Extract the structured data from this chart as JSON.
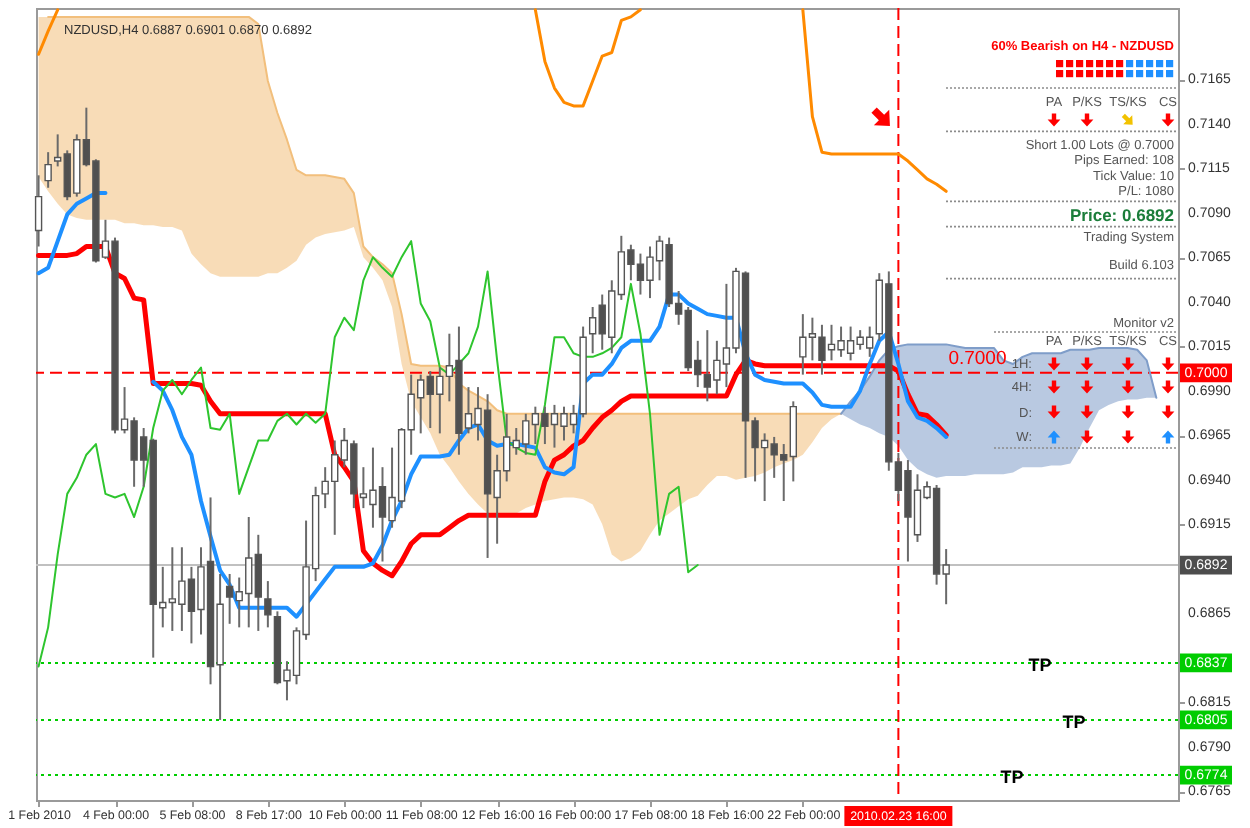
{
  "chart_data": {
    "type": "candlestick",
    "title": "NZDUSD,H4 0.6887 0.6901 0.6870 0.6892",
    "categories": [
      "1 Feb 2010",
      null,
      null,
      null,
      null,
      null,
      null,
      null,
      "4 Feb 00:00",
      null,
      null,
      null,
      null,
      null,
      null,
      null,
      "5 Feb 08:00",
      null,
      null,
      null,
      null,
      null,
      null,
      null,
      "8 Feb 17:00",
      null,
      null,
      null,
      null,
      null,
      null,
      null,
      "10 Feb 00:00",
      null,
      null,
      null,
      null,
      null,
      null,
      null,
      "11 Feb 08:00",
      null,
      null,
      null,
      null,
      null,
      null,
      null,
      "12 Feb 16:00",
      null,
      null,
      null,
      null,
      null,
      null,
      null,
      "16 Feb 00:00",
      null,
      null,
      null,
      null,
      null,
      null,
      null,
      "17 Feb 08:00",
      null,
      null,
      null,
      null,
      null,
      null,
      null,
      "18 Feb 16:00",
      null,
      null,
      null,
      null,
      null,
      null,
      null,
      "22 Feb 00:00",
      null,
      null,
      null,
      null,
      null,
      null,
      null,
      null,
      null,
      "2010.02.23 16:00",
      null,
      null,
      null,
      null,
      null,
      null,
      null,
      null,
      null,
      null,
      null,
      null,
      null,
      null,
      null,
      null,
      null,
      null,
      null,
      null,
      null,
      null,
      null,
      null,
      null,
      null,
      null,
      null,
      null
    ],
    "ohlc": [
      [
        0.708,
        0.7111,
        0.7071,
        0.7099
      ],
      [
        0.7108,
        0.7124,
        0.7104,
        0.7117
      ],
      [
        0.7119,
        0.7134,
        0.7116,
        0.7121
      ],
      [
        0.7123,
        0.7125,
        0.7097,
        0.7099
      ],
      [
        0.7101,
        0.7134,
        0.7099,
        0.7131
      ],
      [
        0.7131,
        0.7149,
        0.7116,
        0.7117
      ],
      [
        0.7119,
        0.712,
        0.7062,
        0.7063
      ],
      [
        0.7065,
        0.7086,
        0.7064,
        0.7074
      ],
      [
        0.7074,
        0.7076,
        0.6966,
        0.6968
      ],
      [
        0.6968,
        0.6992,
        0.6966,
        0.6974
      ],
      [
        0.6973,
        0.6975,
        0.6936,
        0.6951
      ],
      [
        0.6964,
        0.6969,
        0.6936,
        0.6951
      ],
      [
        0.6962,
        0.6963,
        0.684,
        0.687
      ],
      [
        0.6868,
        0.6891,
        0.6857,
        0.6871
      ],
      [
        0.6871,
        0.6902,
        0.6855,
        0.6873
      ],
      [
        0.687,
        0.6902,
        0.6855,
        0.6883
      ],
      [
        0.6884,
        0.6891,
        0.6848,
        0.6866
      ],
      [
        0.6867,
        0.6902,
        0.6853,
        0.6891
      ],
      [
        0.6894,
        0.693,
        0.6825,
        0.6835
      ],
      [
        0.6836,
        0.6887,
        0.6805,
        0.687
      ],
      [
        0.688,
        0.6887,
        0.6859,
        0.6874
      ],
      [
        0.6872,
        0.6885,
        0.6857,
        0.6877
      ],
      [
        0.6876,
        0.6919,
        0.6857,
        0.6896
      ],
      [
        0.6898,
        0.6909,
        0.6855,
        0.6874
      ],
      [
        0.6873,
        0.6883,
        0.6857,
        0.6864
      ],
      [
        0.6863,
        0.6866,
        0.6825,
        0.6826
      ],
      [
        0.6827,
        0.6838,
        0.6816,
        0.6833
      ],
      [
        0.683,
        0.6857,
        0.6825,
        0.6855
      ],
      [
        0.6853,
        0.6917,
        0.685,
        0.6891
      ],
      [
        0.689,
        0.6936,
        0.6883,
        0.6931
      ],
      [
        0.6932,
        0.6947,
        0.6924,
        0.6939
      ],
      [
        0.6939,
        0.6962,
        0.6909,
        0.6954
      ],
      [
        0.6951,
        0.6969,
        0.6947,
        0.6962
      ],
      [
        0.696,
        0.6962,
        0.6924,
        0.6932
      ],
      [
        0.693,
        0.6947,
        0.6924,
        0.6932
      ],
      [
        0.6926,
        0.6958,
        0.6913,
        0.6934
      ],
      [
        0.6936,
        0.6947,
        0.6894,
        0.6919
      ],
      [
        0.6917,
        0.6958,
        0.6913,
        0.693
      ],
      [
        0.6928,
        0.6969,
        0.6924,
        0.6968
      ],
      [
        0.6968,
        0.6999,
        0.6954,
        0.6988
      ],
      [
        0.6986,
        0.6999,
        0.6966,
        0.6996
      ],
      [
        0.6998,
        0.7001,
        0.6969,
        0.6988
      ],
      [
        0.6988,
        0.7003,
        0.6966,
        0.6998
      ],
      [
        0.6998,
        0.7022,
        0.6984,
        0.7004
      ],
      [
        0.7007,
        0.7026,
        0.6954,
        0.6966
      ],
      [
        0.6969,
        0.6992,
        0.6966,
        0.6977
      ],
      [
        0.6971,
        0.6992,
        0.6962,
        0.698
      ],
      [
        0.6979,
        0.6988,
        0.6896,
        0.6932
      ],
      [
        0.693,
        0.6954,
        0.6904,
        0.6945
      ],
      [
        0.6945,
        0.6977,
        0.6939,
        0.6964
      ],
      [
        0.6958,
        0.6969,
        0.6954,
        0.6962
      ],
      [
        0.696,
        0.6977,
        0.6954,
        0.6973
      ],
      [
        0.6971,
        0.6981,
        0.696,
        0.6977
      ],
      [
        0.6977,
        0.6981,
        0.696,
        0.697
      ],
      [
        0.6971,
        0.6982,
        0.6958,
        0.6977
      ],
      [
        0.697,
        0.6981,
        0.6962,
        0.6977
      ],
      [
        0.6971,
        0.6982,
        0.6966,
        0.6977
      ],
      [
        0.6977,
        0.7026,
        0.6975,
        0.702
      ],
      [
        0.7022,
        0.7037,
        0.7011,
        0.7031
      ],
      [
        0.7038,
        0.7044,
        0.7013,
        0.7022
      ],
      [
        0.702,
        0.7052,
        0.7011,
        0.7046
      ],
      [
        0.7044,
        0.7077,
        0.7041,
        0.7068
      ],
      [
        0.7069,
        0.7072,
        0.7052,
        0.7061
      ],
      [
        0.7061,
        0.7067,
        0.7044,
        0.7052
      ],
      [
        0.7052,
        0.7071,
        0.7042,
        0.7065
      ],
      [
        0.7063,
        0.7077,
        0.7052,
        0.7074
      ],
      [
        0.7072,
        0.7076,
        0.7037,
        0.7039
      ],
      [
        0.7039,
        0.7046,
        0.7027,
        0.7033
      ],
      [
        0.7035,
        0.7037,
        0.7001,
        0.7003
      ],
      [
        0.7007,
        0.7018,
        0.6992,
        0.6999
      ],
      [
        0.6999,
        0.7024,
        0.6984,
        0.6992
      ],
      [
        0.6996,
        0.7018,
        0.6988,
        0.7007
      ],
      [
        0.7005,
        0.705,
        0.6992,
        0.7014
      ],
      [
        0.7014,
        0.7059,
        0.7011,
        0.7057
      ],
      [
        0.7056,
        0.7057,
        0.6941,
        0.6973
      ],
      [
        0.6973,
        0.6975,
        0.6939,
        0.6958
      ],
      [
        0.6958,
        0.6966,
        0.6928,
        0.6962
      ],
      [
        0.696,
        0.6964,
        0.6941,
        0.6954
      ],
      [
        0.6954,
        0.696,
        0.6928,
        0.6951
      ],
      [
        0.6953,
        0.6984,
        0.6939,
        0.6981
      ],
      [
        0.7009,
        0.7033,
        0.6999,
        0.702
      ],
      [
        0.702,
        0.7031,
        0.7007,
        0.7022
      ],
      [
        0.702,
        0.7027,
        0.6999,
        0.7007
      ],
      [
        0.7013,
        0.7027,
        0.7007,
        0.7016
      ],
      [
        0.7013,
        0.7026,
        0.7009,
        0.7018
      ],
      [
        0.7011,
        0.7026,
        0.7007,
        0.7018
      ],
      [
        0.7016,
        0.7024,
        0.7013,
        0.702
      ],
      [
        0.7014,
        0.7026,
        0.7009,
        0.702
      ],
      [
        0.7022,
        0.7056,
        0.7018,
        0.7052
      ],
      [
        0.705,
        0.7057,
        0.6945,
        0.695
      ],
      [
        0.695,
        0.6955,
        0.6928,
        0.6934
      ],
      [
        0.6945,
        0.6951,
        0.6894,
        0.6919
      ],
      [
        0.6909,
        0.6943,
        0.6905,
        0.6934
      ],
      [
        0.693,
        0.6939,
        0.6929,
        0.6936
      ],
      [
        0.6935,
        0.6937,
        0.6881,
        0.6887
      ],
      [
        0.6887,
        0.6901,
        0.687,
        0.6892
      ],
      null,
      null,
      null,
      null,
      null,
      null,
      null,
      null,
      null,
      null,
      null,
      null,
      null,
      null,
      null,
      null,
      null,
      null,
      null,
      null,
      null,
      null,
      null,
      null
    ],
    "colors": [
      "#ffffff",
      "#ffffff",
      "#ffffff",
      "#505050",
      "#ffffff",
      "#505050",
      "#505050",
      "#ffffff",
      "#505050",
      "#ffffff",
      "#505050",
      "#505050",
      "#505050",
      "#ffffff",
      "#ffffff",
      "#ffffff",
      "#505050",
      "#ffffff",
      "#505050",
      "#ffffff",
      "#505050",
      "#ffffff",
      "#ffffff",
      "#505050",
      "#505050",
      "#505050",
      "#ffffff",
      "#ffffff",
      "#ffffff",
      "#ffffff",
      "#ffffff",
      "#ffffff",
      "#ffffff",
      "#505050",
      "#ffffff",
      "#ffffff",
      "#505050",
      "#ffffff",
      "#ffffff",
      "#ffffff",
      "#ffffff",
      "#505050",
      "#ffffff",
      "#ffffff",
      "#505050",
      "#ffffff",
      "#ffffff",
      "#505050",
      "#ffffff",
      "#ffffff",
      "#ffffff",
      "#ffffff",
      "#ffffff",
      "#505050",
      "#ffffff",
      "#ffffff",
      "#ffffff",
      "#ffffff",
      "#ffffff",
      "#505050",
      "#ffffff",
      "#ffffff",
      "#505050",
      "#505050",
      "#ffffff",
      "#ffffff",
      "#505050",
      "#505050",
      "#505050",
      "#505050",
      "#505050",
      "#ffffff",
      "#ffffff",
      "#ffffff",
      "#505050",
      "#505050",
      "#ffffff",
      "#505050",
      "#505050",
      "#ffffff",
      "#ffffff",
      "#ffffff",
      "#505050",
      "#ffffff",
      "#ffffff",
      "#ffffff",
      "#ffffff",
      "#ffffff",
      "#ffffff",
      "#505050",
      "#505050",
      "#505050",
      "#ffffff",
      "#ffffff",
      "#505050",
      "#ffffff",
      null,
      null,
      null,
      null,
      null,
      null,
      null,
      null,
      null,
      null,
      null,
      null,
      null,
      null,
      null,
      null,
      null,
      null,
      null,
      null,
      null,
      null,
      null,
      null
    ],
    "series": [
      {
        "type": "line",
        "color": "#f2bf7c",
        "values": [
          null,
          0.72,
          0.72,
          0.72,
          0.72,
          0.72,
          0.72,
          0.72,
          0.72,
          0.72,
          0.72,
          0.72,
          0.72,
          0.72,
          0.72,
          0.72,
          0.72,
          0.72,
          0.72,
          0.72,
          0.72,
          0.72,
          0.72,
          0.7196,
          0.7164,
          0.7146,
          0.7131,
          0.7114,
          0.7111,
          0.7111,
          0.7111,
          0.711,
          0.7109,
          0.7101,
          0.7071,
          0.7065,
          0.7061,
          0.7056,
          0.7033,
          0.7005,
          0.7004,
          0.7004,
          0.7004,
          0.7003,
          0.6994,
          0.699,
          0.6987,
          0.6984,
          0.6979,
          0.6977,
          0.6977,
          0.6977,
          0.6977,
          0.6977,
          0.6977,
          0.6977,
          0.6977,
          0.6977,
          0.6977,
          0.6977,
          0.6977,
          0.6977,
          0.6977,
          0.6977,
          0.6977,
          0.6977,
          0.6977,
          0.6977,
          0.6977,
          0.6977,
          0.6977,
          0.6977,
          0.6977,
          0.6977,
          0.6977,
          0.6977,
          0.6977,
          0.6977,
          0.6977,
          0.6977,
          0.6977,
          0.6977,
          0.6977,
          0.6977,
          0.6977,
          null,
          null,
          null,
          null,
          null,
          null,
          null,
          null,
          null,
          null,
          null,
          null,
          null,
          null,
          null,
          null,
          null,
          null,
          null,
          null,
          null,
          null,
          null,
          null,
          null,
          null,
          null,
          null,
          null,
          null,
          null,
          null,
          null,
          null,
          null
        ],
        "upper": [
          0.72,
          0.72,
          0.72,
          0.72,
          0.72,
          0.72,
          0.72,
          0.72,
          0.72,
          0.72,
          0.72,
          0.72,
          0.72,
          0.72,
          0.72,
          0.72,
          0.72,
          0.72,
          0.72,
          0.72,
          0.72,
          0.72,
          0.72,
          0.7196,
          0.7164,
          0.7146,
          0.7131,
          0.7114,
          0.7111,
          0.7111,
          0.7111,
          0.711,
          0.7109,
          0.7101,
          0.7071,
          0.7065,
          0.7061,
          0.7056,
          0.7033,
          0.7005,
          0.7004,
          0.7004,
          0.7004,
          0.7003,
          0.6994,
          0.699,
          0.6987,
          0.6984,
          0.6979,
          0.6977,
          0.6977,
          0.6977,
          0.6977,
          0.6977,
          0.6977,
          0.6977,
          0.6977,
          0.6977,
          0.6977,
          0.6977,
          0.6977,
          0.6977,
          0.6977,
          0.6977,
          0.6977,
          0.6977,
          0.6977,
          0.6977,
          0.6977,
          0.6977,
          0.6977,
          0.6977,
          0.6977,
          0.6977,
          0.6977,
          0.6977,
          0.6977,
          0.6977,
          0.6977,
          0.6977,
          0.6977,
          0.6977,
          0.6977,
          0.6977,
          0.6977,
          null,
          null,
          null,
          null,
          null,
          null,
          null,
          null,
          null,
          null,
          null,
          null,
          null,
          null,
          null,
          null,
          null,
          null,
          null,
          null,
          null,
          null,
          null,
          null,
          null,
          null,
          null,
          null,
          null,
          null,
          null,
          null,
          null,
          null,
          null
        ],
        "lower": [
          0.711,
          0.7102,
          0.7095,
          0.7089,
          0.7087,
          0.7086,
          0.7086,
          0.7086,
          0.7086,
          0.7084,
          0.7084,
          0.7083,
          0.7083,
          0.7082,
          0.7082,
          0.708,
          0.7067,
          0.7061,
          0.7056,
          0.7054,
          0.7054,
          0.7054,
          0.7054,
          0.7054,
          0.7056,
          0.7056,
          0.7059,
          0.7063,
          0.7072,
          0.7076,
          0.7078,
          0.7079,
          0.708,
          0.7082,
          0.7065,
          0.7059,
          0.7052,
          0.7037,
          0.7005,
          0.6984,
          0.6975,
          0.6966,
          0.6954,
          0.6947,
          0.6939,
          0.6932,
          0.6926,
          0.6921,
          0.6921,
          0.6921,
          0.6921,
          0.6924,
          0.6926,
          0.6928,
          0.6929,
          0.693,
          0.693,
          0.6929,
          0.6926,
          0.6915,
          0.6898,
          0.6894,
          0.6896,
          0.69,
          0.6909,
          0.6917,
          0.6921,
          0.6925,
          0.6929,
          0.6931,
          0.6937,
          0.6942,
          0.6942,
          0.694,
          0.6941,
          0.6942,
          0.6944,
          0.6947,
          0.6949,
          0.6951,
          0.6954,
          0.6961,
          0.6969,
          0.6974,
          0.6977,
          null,
          null,
          null,
          null,
          null,
          null,
          null,
          null,
          null,
          null,
          null,
          null,
          null,
          null,
          null,
          null,
          null,
          null,
          null,
          null,
          null,
          null,
          null,
          null,
          null,
          null,
          null,
          null,
          null,
          null,
          null,
          null,
          null,
          null,
          null
        ]
      },
      {
        "type": "line",
        "color": "#7f9dc9",
        "values": [
          null,
          null,
          null,
          null,
          null,
          null,
          null,
          null,
          null,
          null,
          null,
          null,
          null,
          null,
          null,
          null,
          null,
          null,
          null,
          null,
          null,
          null,
          null,
          null,
          null,
          null,
          null,
          null,
          null,
          null,
          null,
          null,
          null,
          null,
          null,
          null,
          null,
          null,
          null,
          null,
          null,
          null,
          null,
          null,
          null,
          null,
          null,
          null,
          null,
          null,
          null,
          null,
          null,
          null,
          null,
          null,
          null,
          null,
          null,
          null,
          null,
          null,
          null,
          null,
          null,
          null,
          null,
          null,
          null,
          null,
          null,
          null,
          null,
          null,
          null,
          null,
          null,
          null,
          null,
          null,
          null,
          null,
          null,
          null,
          0.6977,
          0.6984,
          0.699,
          0.6998,
          0.7007,
          0.7013,
          0.7015,
          0.7016,
          0.7016,
          0.7016,
          0.7016,
          0.7016,
          0.7015,
          0.7014,
          0.7014,
          0.7014,
          0.7014,
          0.7007,
          0.7005,
          0.7009,
          0.7011,
          0.7011,
          0.7011,
          0.7011,
          0.7013,
          0.7013,
          0.7013,
          0.7014,
          0.7014,
          0.7014,
          0.7014,
          0.7013,
          0.7007,
          0.6986,
          null,
          null
        ],
        "upper": [
          null,
          null,
          null,
          null,
          null,
          null,
          null,
          null,
          null,
          null,
          null,
          null,
          null,
          null,
          null,
          null,
          null,
          null,
          null,
          null,
          null,
          null,
          null,
          null,
          null,
          null,
          null,
          null,
          null,
          null,
          null,
          null,
          null,
          null,
          null,
          null,
          null,
          null,
          null,
          null,
          null,
          null,
          null,
          null,
          null,
          null,
          null,
          null,
          null,
          null,
          null,
          null,
          null,
          null,
          null,
          null,
          null,
          null,
          null,
          null,
          null,
          null,
          null,
          null,
          null,
          null,
          null,
          null,
          null,
          null,
          null,
          null,
          null,
          null,
          null,
          null,
          null,
          null,
          null,
          null,
          null,
          null,
          null,
          null,
          0.6977,
          0.6984,
          0.699,
          0.6998,
          0.7007,
          0.7013,
          0.7015,
          0.7016,
          0.7016,
          0.7016,
          0.7016,
          0.7016,
          0.7015,
          0.7014,
          0.7014,
          0.7014,
          0.7014,
          0.7007,
          0.7005,
          0.7009,
          0.7011,
          0.7011,
          0.7011,
          0.7011,
          0.7013,
          0.7013,
          0.7013,
          0.7014,
          0.7014,
          0.7014,
          0.7014,
          0.7013,
          0.7007,
          0.6986,
          null,
          null
        ],
        "lower": [
          null,
          null,
          null,
          null,
          null,
          null,
          null,
          null,
          null,
          null,
          null,
          null,
          null,
          null,
          null,
          null,
          null,
          null,
          null,
          null,
          null,
          null,
          null,
          null,
          null,
          null,
          null,
          null,
          null,
          null,
          null,
          null,
          null,
          null,
          null,
          null,
          null,
          null,
          null,
          null,
          null,
          null,
          null,
          null,
          null,
          null,
          null,
          null,
          null,
          null,
          null,
          null,
          null,
          null,
          null,
          null,
          null,
          null,
          null,
          null,
          null,
          null,
          null,
          null,
          null,
          null,
          null,
          null,
          null,
          null,
          null,
          null,
          null,
          null,
          null,
          null,
          null,
          null,
          null,
          null,
          null,
          null,
          null,
          null,
          0.6977,
          0.6974,
          0.6971,
          0.6969,
          0.6966,
          0.6964,
          0.6959,
          0.6951,
          0.6946,
          0.6943,
          0.6941,
          0.6942,
          0.6942,
          0.6942,
          0.6943,
          0.6943,
          0.6943,
          0.6943,
          0.6944,
          0.6947,
          0.6947,
          0.6947,
          0.6948,
          0.6948,
          0.6949,
          0.6958,
          0.6969,
          0.6979,
          0.6982,
          0.6984,
          0.6985,
          0.6985,
          0.6986,
          0.6986,
          null,
          null
        ]
      },
      {
        "type": "line",
        "color": "#ff0000",
        "values": [
          0.7066,
          0.7066,
          0.7066,
          0.7066,
          0.7067,
          0.7071,
          0.7071,
          0.7071,
          0.7056,
          0.7053,
          0.7042,
          0.7041,
          0.6994,
          0.6994,
          0.6994,
          0.6994,
          0.6994,
          0.6993,
          0.6984,
          0.6977,
          0.6977,
          0.6977,
          0.6977,
          0.6977,
          0.6977,
          0.6977,
          0.6977,
          0.6977,
          0.6977,
          0.6977,
          0.6977,
          0.6954,
          0.6947,
          0.6939,
          0.69,
          0.6893,
          0.6889,
          0.6886,
          0.6894,
          0.6904,
          0.6909,
          0.6909,
          0.6909,
          0.6913,
          0.6917,
          0.692,
          0.692,
          0.692,
          0.692,
          0.692,
          0.692,
          0.692,
          0.692,
          0.6939,
          0.6951,
          0.6954,
          0.6959,
          0.6962,
          0.6969,
          0.6975,
          0.6979,
          0.6984,
          0.6987,
          0.6987,
          0.6987,
          0.6987,
          0.6987,
          0.6987,
          0.6987,
          0.6987,
          0.6987,
          0.6987,
          0.6987,
          0.6999,
          0.7007,
          0.7005,
          0.7004,
          0.7004,
          0.7004,
          0.7004,
          0.7004,
          0.7004,
          0.7004,
          0.7004,
          0.7004,
          0.7004,
          0.7004,
          0.7004,
          0.7004,
          0.7004,
          0.7001,
          0.6988,
          0.6977,
          0.6976,
          0.6971,
          0.6965,
          null,
          null,
          null,
          null,
          null,
          null,
          null,
          null,
          null,
          null,
          null,
          null,
          null,
          null,
          null,
          null,
          null,
          null,
          null,
          null,
          null,
          null,
          null,
          null
        ]
      },
      {
        "type": "line",
        "color": "#1e90ff",
        "values": [
          0.7056,
          0.7059,
          0.7074,
          0.7089,
          0.7095,
          0.7098,
          0.7101,
          0.7101,
          null,
          null,
          null,
          null,
          0.6995,
          0.699,
          0.6979,
          0.6964,
          0.6954,
          0.6928,
          0.6908,
          0.6889,
          0.6881,
          0.6868,
          0.6868,
          0.6868,
          0.6868,
          0.6868,
          0.6868,
          0.6863,
          0.687,
          0.6877,
          0.6884,
          0.6891,
          0.6891,
          0.6891,
          0.6891,
          0.6893,
          0.6903,
          0.6917,
          0.6928,
          0.6943,
          0.6953,
          0.6953,
          0.6953,
          0.6954,
          0.6962,
          0.6969,
          0.6971,
          0.6962,
          0.6959,
          0.696,
          0.696,
          0.6959,
          0.6958,
          0.6947,
          0.6944,
          0.6943,
          0.6947,
          0.6994,
          0.6999,
          0.6999,
          0.7005,
          0.7014,
          0.7018,
          0.7018,
          0.7018,
          0.7026,
          0.7044,
          0.7044,
          0.7039,
          0.7036,
          0.7033,
          0.7032,
          0.7031,
          0.7031,
          0.7011,
          0.6999,
          0.6996,
          0.6995,
          0.6994,
          0.6994,
          0.6994,
          0.6989,
          0.6982,
          0.6981,
          0.6981,
          0.6981,
          0.699,
          0.7005,
          0.7018,
          0.7023,
          0.7005,
          0.6984,
          0.6975,
          0.6973,
          0.6969,
          0.6964,
          null,
          null,
          null,
          null,
          null,
          null,
          null,
          null,
          null,
          null,
          null,
          null,
          null,
          null,
          null,
          null,
          null,
          null,
          null,
          null,
          null,
          null,
          null,
          null
        ]
      },
      {
        "type": "line",
        "color": "#2ec52e",
        "values": [
          0.6835,
          0.6857,
          0.6898,
          0.6932,
          0.6941,
          0.6954,
          0.696,
          0.6932,
          0.693,
          0.6932,
          0.6919,
          0.6936,
          0.6969,
          0.699,
          0.6996,
          0.6988,
          0.6996,
          0.7003,
          0.6969,
          0.6968,
          0.6977,
          0.6932,
          0.6947,
          0.6962,
          0.6962,
          0.6973,
          0.6977,
          0.6971,
          0.6977,
          0.6972,
          0.6977,
          0.702,
          0.7031,
          0.7024,
          0.7052,
          0.7065,
          0.7059,
          0.7054,
          0.7065,
          0.7074,
          0.7039,
          0.7029,
          0.7003,
          0.6999,
          0.7005,
          0.7011,
          0.7026,
          0.7057,
          0.7007,
          0.6962,
          0.6958,
          0.6955,
          0.6954,
          0.6982,
          0.702,
          0.702,
          0.7011,
          0.7009,
          0.7009,
          0.7011,
          0.7014,
          0.702,
          0.705,
          0.7022,
          0.6977,
          0.6909,
          0.6932,
          0.6936,
          0.6888,
          0.6892,
          null,
          null,
          null,
          null,
          null,
          null,
          null,
          null,
          null,
          null,
          null,
          null,
          null,
          null,
          null,
          null,
          null,
          null,
          null,
          null,
          null,
          null,
          null,
          null,
          null,
          null,
          null,
          null,
          null,
          null,
          null,
          null,
          null,
          null,
          null,
          null,
          null,
          null,
          null,
          null,
          null,
          null,
          null,
          null,
          null,
          null,
          null,
          null,
          null,
          null
        ]
      },
      {
        "type": "line",
        "color": "#ff8a00",
        "values": [
          0.7179,
          0.7192,
          0.7204,
          null,
          null,
          null,
          null,
          null,
          null,
          null,
          null,
          null,
          null,
          null,
          null,
          null,
          null,
          null,
          null,
          null,
          null,
          null,
          null,
          null,
          null,
          null,
          null,
          null,
          null,
          null,
          null,
          null,
          null,
          null,
          null,
          null,
          null,
          null,
          null,
          null,
          null,
          null,
          null,
          null,
          null,
          null,
          null,
          null,
          null,
          null,
          null,
          null,
          0.7204,
          0.7175,
          0.716,
          0.7152,
          0.715,
          0.715,
          0.7164,
          0.7178,
          0.718,
          0.7198,
          0.72,
          0.7204,
          null,
          null,
          null,
          null,
          null,
          null,
          null,
          null,
          null,
          null,
          null,
          null,
          null,
          null,
          null,
          null,
          0.7204,
          0.7144,
          0.7124,
          0.7123,
          0.7123,
          0.7123,
          0.7123,
          0.7123,
          0.7123,
          0.7123,
          0.7123,
          0.7119,
          0.7114,
          0.7109,
          0.7106,
          0.7102,
          null,
          null,
          null,
          null,
          null,
          null,
          null,
          null,
          null,
          null,
          null,
          null,
          null,
          null,
          null,
          null,
          null,
          null,
          null,
          null,
          null,
          null,
          null,
          null
        ]
      }
    ],
    "ylim": [
      0.676,
      0.7205
    ],
    "yticks": [
      0.7165,
      {
        "value": 0.714,
        "label": "0.7140"
      },
      0.7115,
      {
        "value": 0.709,
        "label": "0.7090"
      },
      0.7065,
      {
        "value": 0.704,
        "label": "0.7040"
      },
      0.7015,
      {
        "value": 0.699,
        "label": "0.6990"
      },
      0.6965,
      {
        "value": 0.694,
        "label": "0.6940"
      },
      0.6915,
      0.6865,
      0.6815,
      {
        "value": 0.679,
        "label": "0.6790"
      },
      0.6765
    ],
    "ref_lines": [
      {
        "axis": "y",
        "value": 0.7,
        "label": "0.7000",
        "color": "#ff0000",
        "line_style": "dashed"
      },
      {
        "axis": "y",
        "value": 0.6892,
        "label": "0.6892",
        "color": "#c0c0c0",
        "line_style": "solid"
      },
      {
        "axis": "y",
        "value": 0.6837,
        "label": "0.6837",
        "color": "#00cc00",
        "line_style": "dotted"
      },
      {
        "axis": "y",
        "value": 0.6805,
        "label": "0.6805",
        "color": "#00cc00",
        "line_style": "dotted"
      },
      {
        "axis": "y",
        "value": 0.6774,
        "label": "0.6774",
        "color": "#00cc00",
        "line_style": "dotted"
      },
      {
        "axis": "x",
        "value": "2010.02.23 16:00",
        "color": "#ff0000",
        "line_style": "dashed"
      }
    ],
    "annotations": [
      "60% Bearish on H4 - NZDUSD",
      "PA",
      "P/KS",
      "TS/KS",
      "CS",
      "Short 1.00 Lots @ 0.7000",
      "Pips Earned: 108",
      "Tick Value: 10",
      "P/L: 1080",
      "Price: 0.6892",
      "Trading System",
      "Build 6.103",
      "Monitor v2",
      "PA",
      "P/KS",
      "TS/KS",
      "CS",
      "1H:",
      "4H:",
      "D:",
      "W:",
      {
        "text": "0.7000",
        "y": 0.7
      },
      {
        "text": "TP",
        "y": 0.6837
      },
      {
        "text": "TP",
        "y": 0.6805
      },
      {
        "text": "TP",
        "y": 0.6774
      }
    ]
  }
}
